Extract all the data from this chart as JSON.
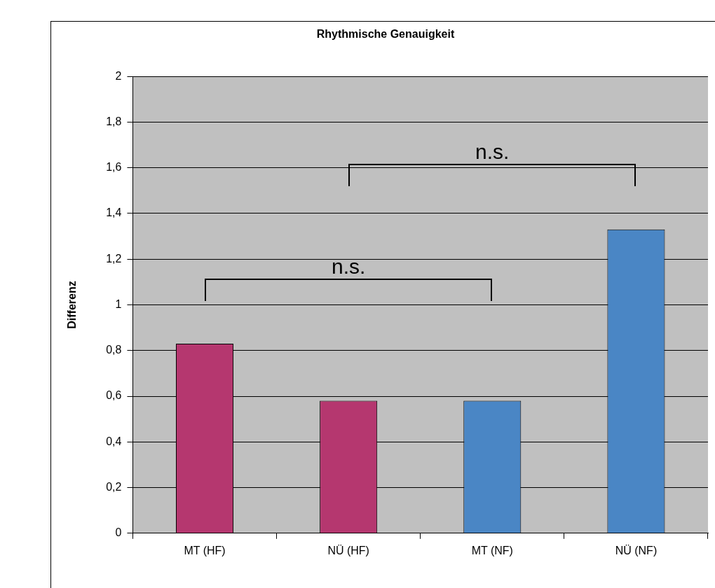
{
  "chart_data": {
    "type": "bar",
    "title": "Rhythmische Genauigkeit",
    "ylabel": "Differenz",
    "categories": [
      "MT (HF)",
      "NÜ (HF)",
      "MT (NF)",
      "NÜ (NF)"
    ],
    "values": [
      0.83,
      0.58,
      0.58,
      1.33
    ],
    "colors": [
      "#b5376f",
      "#b5376f",
      "#4a86c5",
      "#4a86c5"
    ],
    "ylim": [
      0,
      2
    ],
    "yticks": [
      0,
      {
        "value": 0.2,
        "label": "0,2"
      },
      {
        "value": 0.4,
        "label": "0,4"
      },
      {
        "value": 0.6,
        "label": "0,6"
      },
      {
        "value": 0.8,
        "label": "0,8"
      },
      1,
      {
        "value": 1.2,
        "label": "1,2"
      },
      {
        "value": 1.4,
        "label": "1,4"
      },
      {
        "value": 1.6,
        "label": "1,6"
      },
      {
        "value": 1.8,
        "label": "1,8"
      },
      2
    ],
    "grid": "y",
    "legend": false,
    "annotations": [
      "n.s.",
      "n.s."
    ]
  }
}
